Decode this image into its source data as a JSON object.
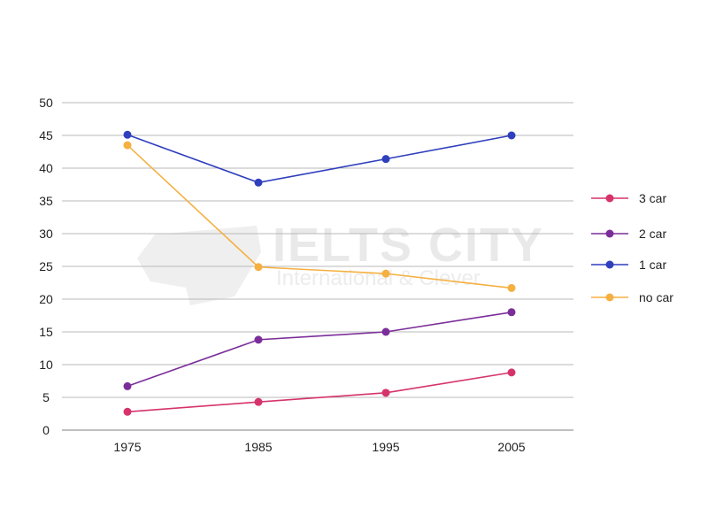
{
  "watermark": {
    "brand": "IELTS CITY",
    "tagline": "International & Clever"
  },
  "chart_data": {
    "type": "line",
    "x": [
      "1975",
      "1985",
      "1995",
      "2005"
    ],
    "ylim": [
      0,
      50
    ],
    "yticks": [
      "0",
      "5",
      "10",
      "15",
      "20",
      "25",
      "30",
      "35",
      "40",
      "45",
      "50"
    ],
    "grid": true,
    "legend_position": "right",
    "series": [
      {
        "name": "3 car",
        "color": "#d6336c",
        "values": [
          2.8,
          4.3,
          5.7,
          8.8
        ]
      },
      {
        "name": "2 car",
        "color": "#7b2e99",
        "values": [
          6.7,
          13.8,
          15.0,
          18.0
        ]
      },
      {
        "name": "1 car",
        "color": "#2f3fbd",
        "values": [
          45.1,
          37.8,
          41.4,
          45.0
        ]
      },
      {
        "name": "no car",
        "color": "#f5b041",
        "values": [
          43.5,
          24.9,
          23.9,
          21.7
        ]
      }
    ]
  }
}
